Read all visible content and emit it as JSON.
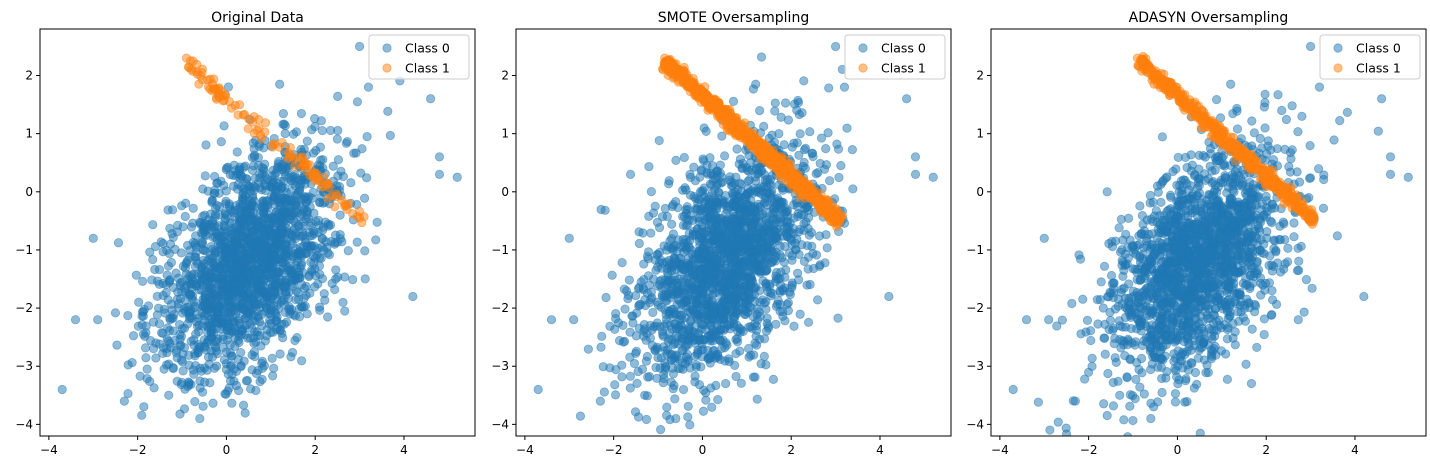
{
  "chart_data": [
    {
      "type": "scatter",
      "title": "Original Data",
      "xlabel": "",
      "ylabel": "",
      "xlim": [
        -4.2,
        5.6
      ],
      "ylim": [
        -4.2,
        2.8
      ],
      "xticks": [
        -4,
        -2,
        0,
        2,
        4
      ],
      "yticks": [
        -4,
        -3,
        -2,
        -1,
        0,
        1,
        2
      ],
      "grid": false,
      "legend_position": "top-right",
      "series": [
        {
          "name": "Class 0",
          "color": "#1f77b4",
          "distribution": {
            "center": [
              0.5,
              -1.2
            ],
            "std": [
              1.0,
              1.0
            ],
            "correlation": 0.5,
            "count": 1900
          },
          "points": [
            [
              3.0,
              2.5
            ],
            [
              4.6,
              1.6
            ],
            [
              5.2,
              0.25
            ],
            [
              -3.7,
              -3.4
            ],
            [
              -3.4,
              -2.2
            ],
            [
              -3.0,
              -0.8
            ],
            [
              -2.9,
              -2.2
            ],
            [
              4.2,
              -1.8
            ],
            [
              -0.6,
              -3.9
            ],
            [
              1.2,
              1.85
            ],
            [
              3.2,
              1.8
            ],
            [
              4.8,
              0.6
            ],
            [
              4.8,
              0.3
            ],
            [
              -2.3,
              -3.6
            ],
            [
              -1.3,
              -3.5
            ]
          ]
        },
        {
          "name": "Class 1",
          "color": "#ff7f0e",
          "line": {
            "start": [
              -0.85,
              2.2
            ],
            "end": [
              3.1,
              -0.5
            ],
            "jitter": 0.07,
            "count": 110
          },
          "points": [
            [
              -0.9,
              2.3
            ],
            [
              -0.75,
              2.25
            ],
            [
              -0.85,
              2.15
            ],
            [
              -0.55,
              2.05
            ],
            [
              2.6,
              -0.15
            ],
            [
              3.0,
              -0.45
            ]
          ]
        }
      ]
    },
    {
      "type": "scatter",
      "title": "SMOTE Oversampling",
      "xlabel": "",
      "ylabel": "",
      "xlim": [
        -4.2,
        5.6
      ],
      "ylim": [
        -4.2,
        2.8
      ],
      "xticks": [
        -4,
        -2,
        0,
        2,
        4
      ],
      "yticks": [
        -4,
        -3,
        -2,
        -1,
        0,
        1,
        2
      ],
      "grid": false,
      "legend_position": "top-right",
      "series": [
        {
          "name": "Class 0",
          "color": "#1f77b4",
          "distribution": {
            "center": [
              0.5,
              -1.2
            ],
            "std": [
              1.0,
              1.0
            ],
            "correlation": 0.5,
            "count": 1900
          },
          "points": [
            [
              3.0,
              2.5
            ],
            [
              4.6,
              1.6
            ],
            [
              5.2,
              0.25
            ],
            [
              -3.7,
              -3.4
            ],
            [
              -3.4,
              -2.2
            ],
            [
              -3.0,
              -0.8
            ],
            [
              -2.9,
              -2.2
            ],
            [
              4.2,
              -1.8
            ],
            [
              -0.6,
              -3.9
            ],
            [
              1.2,
              1.85
            ],
            [
              3.2,
              1.8
            ],
            [
              4.8,
              0.6
            ],
            [
              4.8,
              0.3
            ],
            [
              -2.3,
              -3.6
            ],
            [
              -1.3,
              -3.5
            ]
          ]
        },
        {
          "name": "Class 1",
          "color": "#ff7f0e",
          "line": {
            "start": [
              -0.85,
              2.25
            ],
            "end": [
              3.1,
              -0.5
            ],
            "jitter": 0.06,
            "count": 900
          },
          "points": [
            [
              -0.85,
              2.3
            ],
            [
              -0.8,
              2.25
            ],
            [
              -0.85,
              2.2
            ],
            [
              -0.75,
              2.2
            ],
            [
              -0.5,
              2.05
            ],
            [
              3.1,
              -0.5
            ]
          ]
        }
      ]
    },
    {
      "type": "scatter",
      "title": "ADASYN Oversampling",
      "xlabel": "",
      "ylabel": "",
      "xlim": [
        -4.2,
        5.6
      ],
      "ylim": [
        -4.2,
        2.8
      ],
      "xticks": [
        -4,
        -2,
        0,
        2,
        4
      ],
      "yticks": [
        -4,
        -3,
        -2,
        -1,
        0,
        1,
        2
      ],
      "grid": false,
      "legend_position": "top-right",
      "series": [
        {
          "name": "Class 0",
          "color": "#1f77b4",
          "distribution": {
            "center": [
              0.5,
              -1.2
            ],
            "std": [
              1.0,
              1.0
            ],
            "correlation": 0.5,
            "count": 1900
          },
          "points": [
            [
              3.0,
              2.5
            ],
            [
              4.6,
              1.6
            ],
            [
              5.2,
              0.25
            ],
            [
              -3.7,
              -3.4
            ],
            [
              -3.4,
              -2.2
            ],
            [
              -3.0,
              -0.8
            ],
            [
              -2.9,
              -2.2
            ],
            [
              4.2,
              -1.8
            ],
            [
              -0.6,
              -3.9
            ],
            [
              1.2,
              1.85
            ],
            [
              3.2,
              1.8
            ],
            [
              4.8,
              0.6
            ],
            [
              4.8,
              0.3
            ],
            [
              -2.3,
              -3.6
            ],
            [
              -1.3,
              -3.5
            ]
          ]
        },
        {
          "name": "Class 1",
          "color": "#ff7f0e",
          "line": {
            "start": [
              -0.85,
              2.25
            ],
            "end": [
              3.1,
              -0.5
            ],
            "jitter": 0.06,
            "count": 500
          },
          "points": [
            [
              -0.9,
              2.3
            ],
            [
              -0.75,
              2.25
            ],
            [
              -0.85,
              2.15
            ],
            [
              -0.55,
              2.05
            ],
            [
              3.05,
              -0.45
            ]
          ]
        }
      ]
    }
  ]
}
